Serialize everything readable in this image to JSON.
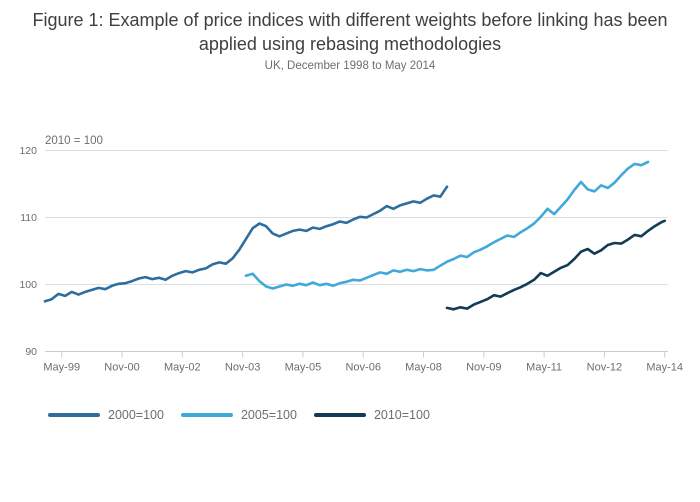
{
  "chart_data": {
    "type": "line",
    "title": "Figure 1: Example of price indices with different weights before linking has been applied using rebasing methodologies",
    "subtitle": "UK, December 1998 to May 2014",
    "axis_note": "2010 = 100",
    "ylim": [
      90,
      120
    ],
    "yticks": [
      90,
      100,
      110,
      120
    ],
    "grid": "horizontal-only",
    "legend_position": "bottom-left",
    "x_axis_note": "month index 0 = Dec-1998, 185 = May-2014",
    "x_tick_labels": [
      "May-99",
      "Nov-00",
      "May-02",
      "Nov-03",
      "May-05",
      "Nov-06",
      "May-08",
      "Nov-09",
      "May-11",
      "Nov-12",
      "May-14"
    ],
    "x_tick_months": [
      5,
      23,
      41,
      59,
      77,
      95,
      113,
      131,
      149,
      167,
      185
    ],
    "series": [
      {
        "name": "2000=100",
        "color": "#2e6e9e",
        "range": "Dec-1998 to Dec-2008",
        "points": [
          [
            0,
            97.5
          ],
          [
            2,
            97.8
          ],
          [
            4,
            98.6
          ],
          [
            6,
            98.3
          ],
          [
            8,
            98.9
          ],
          [
            10,
            98.5
          ],
          [
            12,
            98.9
          ],
          [
            14,
            99.2
          ],
          [
            16,
            99.5
          ],
          [
            18,
            99.3
          ],
          [
            20,
            99.8
          ],
          [
            22,
            100.1
          ],
          [
            24,
            100.2
          ],
          [
            26,
            100.5
          ],
          [
            28,
            100.9
          ],
          [
            30,
            101.1
          ],
          [
            32,
            100.8
          ],
          [
            34,
            101.0
          ],
          [
            36,
            100.7
          ],
          [
            38,
            101.3
          ],
          [
            40,
            101.7
          ],
          [
            42,
            102.0
          ],
          [
            44,
            101.8
          ],
          [
            46,
            102.2
          ],
          [
            48,
            102.4
          ],
          [
            50,
            103.0
          ],
          [
            52,
            103.3
          ],
          [
            54,
            103.1
          ],
          [
            56,
            103.9
          ],
          [
            58,
            105.2
          ],
          [
            60,
            106.8
          ],
          [
            62,
            108.4
          ],
          [
            64,
            109.1
          ],
          [
            66,
            108.7
          ],
          [
            68,
            107.6
          ],
          [
            70,
            107.2
          ],
          [
            72,
            107.6
          ],
          [
            74,
            108.0
          ],
          [
            76,
            108.2
          ],
          [
            78,
            108.0
          ],
          [
            80,
            108.5
          ],
          [
            82,
            108.3
          ],
          [
            84,
            108.7
          ],
          [
            86,
            109.0
          ],
          [
            88,
            109.4
          ],
          [
            90,
            109.2
          ],
          [
            92,
            109.7
          ],
          [
            94,
            110.1
          ],
          [
            96,
            110.0
          ],
          [
            98,
            110.5
          ],
          [
            100,
            111.0
          ],
          [
            102,
            111.7
          ],
          [
            104,
            111.3
          ],
          [
            106,
            111.8
          ],
          [
            108,
            112.1
          ],
          [
            110,
            112.4
          ],
          [
            112,
            112.2
          ],
          [
            114,
            112.8
          ],
          [
            116,
            113.3
          ],
          [
            118,
            113.1
          ],
          [
            120,
            114.6
          ]
        ]
      },
      {
        "name": "2005=100",
        "color": "#41a9da",
        "range": "Dec-2003 to Dec-2013",
        "points": [
          [
            60,
            101.3
          ],
          [
            62,
            101.6
          ],
          [
            64,
            100.5
          ],
          [
            66,
            99.7
          ],
          [
            68,
            99.4
          ],
          [
            70,
            99.7
          ],
          [
            72,
            100.0
          ],
          [
            74,
            99.8
          ],
          [
            76,
            100.1
          ],
          [
            78,
            99.9
          ],
          [
            80,
            100.3
          ],
          [
            82,
            99.9
          ],
          [
            84,
            100.1
          ],
          [
            86,
            99.8
          ],
          [
            88,
            100.2
          ],
          [
            90,
            100.4
          ],
          [
            92,
            100.7
          ],
          [
            94,
            100.6
          ],
          [
            96,
            101.0
          ],
          [
            98,
            101.4
          ],
          [
            100,
            101.8
          ],
          [
            102,
            101.6
          ],
          [
            104,
            102.1
          ],
          [
            106,
            101.9
          ],
          [
            108,
            102.2
          ],
          [
            110,
            102.0
          ],
          [
            112,
            102.3
          ],
          [
            114,
            102.1
          ],
          [
            116,
            102.2
          ],
          [
            118,
            102.8
          ],
          [
            120,
            103.4
          ],
          [
            122,
            103.8
          ],
          [
            124,
            104.3
          ],
          [
            126,
            104.1
          ],
          [
            128,
            104.8
          ],
          [
            130,
            105.2
          ],
          [
            132,
            105.7
          ],
          [
            134,
            106.3
          ],
          [
            136,
            106.8
          ],
          [
            138,
            107.3
          ],
          [
            140,
            107.1
          ],
          [
            142,
            107.8
          ],
          [
            144,
            108.4
          ],
          [
            146,
            109.1
          ],
          [
            148,
            110.1
          ],
          [
            150,
            111.3
          ],
          [
            152,
            110.5
          ],
          [
            154,
            111.6
          ],
          [
            156,
            112.7
          ],
          [
            158,
            114.1
          ],
          [
            160,
            115.3
          ],
          [
            162,
            114.2
          ],
          [
            164,
            113.9
          ],
          [
            166,
            114.8
          ],
          [
            168,
            114.4
          ],
          [
            170,
            115.2
          ],
          [
            172,
            116.3
          ],
          [
            174,
            117.3
          ],
          [
            176,
            118.0
          ],
          [
            178,
            117.8
          ],
          [
            180,
            118.3
          ]
        ]
      },
      {
        "name": "2010=100",
        "color": "#133b54",
        "range": "Dec-2008 to May-2014",
        "points": [
          [
            120,
            96.5
          ],
          [
            122,
            96.3
          ],
          [
            124,
            96.6
          ],
          [
            126,
            96.4
          ],
          [
            128,
            97.0
          ],
          [
            130,
            97.4
          ],
          [
            132,
            97.8
          ],
          [
            134,
            98.4
          ],
          [
            136,
            98.2
          ],
          [
            138,
            98.7
          ],
          [
            140,
            99.2
          ],
          [
            142,
            99.6
          ],
          [
            144,
            100.1
          ],
          [
            146,
            100.7
          ],
          [
            148,
            101.7
          ],
          [
            150,
            101.3
          ],
          [
            152,
            101.9
          ],
          [
            154,
            102.5
          ],
          [
            156,
            102.9
          ],
          [
            158,
            103.8
          ],
          [
            160,
            104.9
          ],
          [
            162,
            105.3
          ],
          [
            164,
            104.6
          ],
          [
            166,
            105.1
          ],
          [
            168,
            105.9
          ],
          [
            170,
            106.2
          ],
          [
            172,
            106.1
          ],
          [
            174,
            106.7
          ],
          [
            176,
            107.4
          ],
          [
            178,
            107.2
          ],
          [
            180,
            108.0
          ],
          [
            182,
            108.7
          ],
          [
            184,
            109.3
          ],
          [
            185,
            109.5
          ]
        ]
      }
    ],
    "colors": {
      "gridline": "#dcdfe2",
      "axis_line": "#c6cdd4",
      "tick_mark": "#c3cfd8",
      "title_text": "#3f3f41",
      "muted_text": "#6e6e6e"
    }
  }
}
